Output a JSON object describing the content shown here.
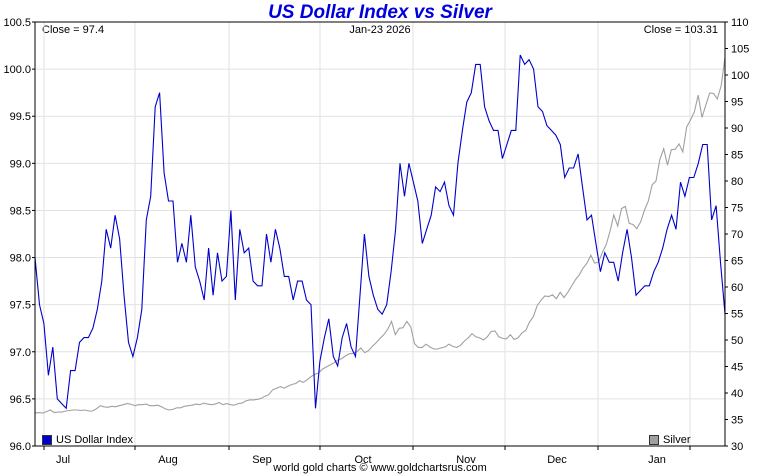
{
  "chart_data": {
    "type": "line",
    "title": "US Dollar Index vs Silver",
    "header_left": "Close = 97.4",
    "header_center": "Jan-23  2026",
    "header_right": "Close = 103.31",
    "footer": "world gold charts © www.goldchartsrus.com",
    "x_ticks": [
      "Jul",
      "Aug",
      "Sep",
      "Oct",
      "Nov",
      "Dec",
      "Jan"
    ],
    "y_left": {
      "min": 96.0,
      "max": 100.5,
      "ticks": [
        "96.0",
        "96.5",
        "97.0",
        "97.5",
        "98.0",
        "98.5",
        "99.0",
        "99.5",
        "100.0",
        "100.5"
      ]
    },
    "y_right": {
      "min": 30,
      "max": 110,
      "ticks": [
        "30",
        "35",
        "40",
        "45",
        "50",
        "55",
        "60",
        "65",
        "70",
        "75",
        "80",
        "85",
        "90",
        "95",
        "100",
        "105",
        "110"
      ]
    },
    "grid": true,
    "series": [
      {
        "name": "US Dollar Index",
        "axis": "left",
        "color": "#0000cc",
        "values": [
          98.0,
          97.5,
          97.3,
          96.75,
          97.05,
          96.5,
          96.45,
          96.4,
          96.8,
          96.8,
          97.1,
          97.15,
          97.15,
          97.25,
          97.45,
          97.75,
          98.3,
          98.1,
          98.45,
          98.2,
          97.6,
          97.1,
          96.95,
          97.15,
          97.45,
          98.4,
          98.65,
          99.6,
          99.75,
          98.9,
          98.6,
          98.6,
          97.95,
          98.15,
          97.95,
          98.45,
          97.9,
          97.75,
          97.55,
          98.1,
          97.6,
          98.05,
          97.75,
          97.8,
          98.5,
          97.55,
          98.3,
          98.05,
          98.1,
          97.75,
          97.7,
          97.7,
          98.25,
          97.95,
          98.3,
          98.1,
          97.8,
          97.8,
          97.55,
          97.75,
          97.75,
          97.55,
          97.5,
          96.4,
          96.9,
          97.15,
          97.35,
          96.95,
          96.85,
          97.15,
          97.3,
          97.05,
          96.95,
          97.6,
          98.25,
          97.8,
          97.6,
          97.45,
          97.4,
          97.5,
          97.85,
          98.3,
          99.0,
          98.65,
          99.0,
          98.8,
          98.6,
          98.15,
          98.3,
          98.45,
          98.75,
          98.7,
          98.8,
          98.55,
          98.45,
          99.0,
          99.35,
          99.65,
          99.75,
          100.05,
          100.05,
          99.6,
          99.45,
          99.35,
          99.35,
          99.05,
          99.2,
          99.35,
          99.35,
          100.15,
          100.05,
          100.1,
          100.0,
          99.6,
          99.55,
          99.4,
          99.35,
          99.3,
          99.2,
          98.85,
          98.95,
          98.95,
          99.1,
          98.75,
          98.4,
          98.45,
          98.15,
          97.85,
          98.05,
          97.95,
          97.95,
          97.75,
          98.05,
          98.3,
          98.0,
          97.6,
          97.65,
          97.7,
          97.7,
          97.85,
          97.95,
          98.1,
          98.3,
          98.45,
          98.3,
          98.8,
          98.65,
          98.85,
          98.85,
          99.0,
          99.2,
          99.2,
          98.4,
          98.55,
          97.95,
          97.4
        ]
      },
      {
        "name": "Silver",
        "axis": "right",
        "color": "#a0a0a0",
        "values": [
          36.2,
          36.3,
          36.2,
          36.5,
          36.8,
          36.3,
          36.4,
          36.4,
          36.6,
          36.7,
          36.8,
          36.8,
          36.7,
          36.8,
          36.6,
          36.6,
          37.0,
          37.6,
          37.4,
          37.3,
          37.5,
          37.4,
          37.6,
          37.8,
          38.0,
          37.9,
          37.6,
          37.8,
          37.8,
          37.9,
          37.6,
          37.6,
          37.7,
          37.4,
          37.0,
          36.8,
          36.9,
          37.2,
          37.2,
          37.5,
          37.6,
          37.7,
          37.9,
          37.8,
          38.1,
          37.9,
          37.8,
          37.9,
          38.2,
          37.8,
          38.0,
          37.8,
          37.7,
          38.0,
          38.1,
          38.5,
          38.7,
          38.7,
          38.8,
          39.0,
          39.4,
          39.7,
          40.6,
          40.9,
          41.2,
          40.9,
          41.3,
          41.6,
          41.8,
          42.3,
          42.0,
          42.5,
          43.1,
          43.5,
          43.8,
          44.5,
          44.9,
          45.3,
          45.7,
          46.2,
          46.5,
          47.0,
          47.4,
          47.5,
          47.8,
          48.5,
          47.6,
          48.0,
          48.8,
          49.5,
          50.3,
          51.0,
          52.0,
          53.5,
          51.0,
          52.2,
          52.3,
          53.5,
          52.5,
          49.3,
          48.6,
          48.6,
          49.2,
          48.7,
          48.3,
          48.3,
          48.5,
          48.7,
          49.2,
          48.8,
          48.6,
          49.0,
          49.8,
          50.4,
          51.2,
          50.6,
          50.4,
          50.0,
          50.6,
          51.6,
          51.7,
          50.6,
          50.3,
          50.2,
          51.0,
          50.1,
          50.4,
          51.3,
          51.8,
          53.4,
          54.4,
          56.5,
          57.5,
          58.3,
          58.2,
          58.5,
          57.8,
          59.0,
          58.0,
          59.0,
          60.2,
          61.4,
          62.3,
          63.6,
          64.5,
          66.0,
          64.5,
          64.7,
          66.5,
          68.0,
          70.5,
          73.6,
          71.5,
          74.8,
          75.2,
          72.0,
          71.8,
          71.0,
          72.3,
          74.5,
          76.2,
          79.3,
          80.0,
          84.0,
          86.1,
          83.0,
          85.9,
          86.0,
          87.0,
          85.5,
          90.2,
          91.5,
          93.0,
          96.2,
          92.0,
          94.3,
          96.6,
          96.5,
          95.5,
          98.0,
          103.3
        ]
      }
    ]
  }
}
